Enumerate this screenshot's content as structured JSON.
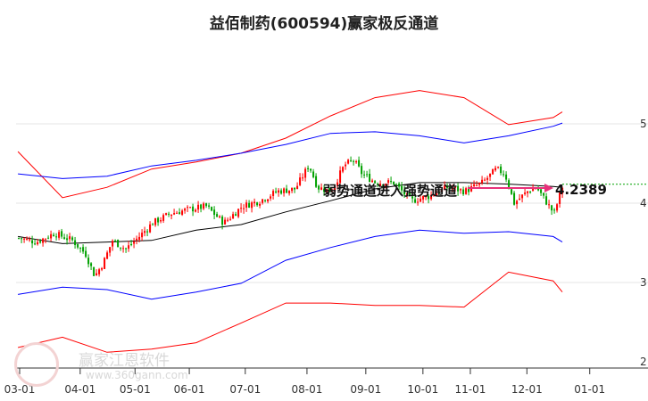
{
  "chart_data": {
    "type": "candlestick-channel",
    "title": "益佰制药(600594)赢家极反通道",
    "x_unit": "months since 03-01",
    "x_ticks": [
      {
        "t": 0,
        "label": "03-01"
      },
      {
        "t": 1.06,
        "label": "04-01"
      },
      {
        "t": 2.02,
        "label": "05-01"
      },
      {
        "t": 2.97,
        "label": "06-01"
      },
      {
        "t": 3.95,
        "label": "07-01"
      },
      {
        "t": 5.03,
        "label": "08-01"
      },
      {
        "t": 6.06,
        "label": "09-01"
      },
      {
        "t": 7.06,
        "label": "10-01"
      },
      {
        "t": 7.89,
        "label": "11-01"
      },
      {
        "t": 8.88,
        "label": "12-01"
      },
      {
        "t": 9.98,
        "label": "01-01"
      }
    ],
    "y_ticks": [
      {
        "v": 5,
        "label": "5"
      },
      {
        "v": 4,
        "label": "4"
      },
      {
        "v": 3,
        "label": "3"
      },
      {
        "v": 2,
        "label": "2"
      }
    ],
    "ylim": [
      1.93,
      5.62
    ],
    "grid": true,
    "price": {
      "t": [
        -0.03,
        0.28,
        0.59,
        0.91,
        1.14,
        1.3,
        1.45,
        1.61,
        1.84,
        2.08,
        2.31,
        2.63,
        2.94,
        3.25,
        3.56,
        3.88,
        4.19,
        4.5,
        4.81,
        5.05,
        5.2,
        5.44,
        5.67,
        5.83,
        5.98,
        6.22,
        6.53,
        6.84,
        7.16,
        7.47,
        7.78,
        8.09,
        8.33,
        8.48,
        8.64,
        8.88,
        9.03,
        9.19,
        9.34,
        9.5
      ],
      "close": [
        3.56,
        3.51,
        3.62,
        3.53,
        3.36,
        3.08,
        3.25,
        3.53,
        3.42,
        3.58,
        3.75,
        3.87,
        3.92,
        3.96,
        3.75,
        3.96,
        4.03,
        4.15,
        4.18,
        4.48,
        4.2,
        4.15,
        4.48,
        4.54,
        4.37,
        4.26,
        4.26,
        4.03,
        4.09,
        4.2,
        4.15,
        4.26,
        4.43,
        4.37,
        4.0,
        4.15,
        4.2,
        4.03,
        3.87,
        4.24
      ]
    },
    "bands": {
      "t": [
        -0.03,
        0.75,
        1.53,
        2.31,
        3.09,
        3.88,
        4.66,
        5.44,
        6.22,
        7.0,
        7.78,
        8.56,
        9.34,
        9.5
      ],
      "series": [
        {
          "name": "upper-outer",
          "color": "#ff0000",
          "values": [
            4.65,
            4.07,
            4.2,
            4.43,
            4.52,
            4.63,
            4.82,
            5.1,
            5.33,
            5.42,
            5.33,
            4.99,
            5.08,
            5.15
          ]
        },
        {
          "name": "upper-inner",
          "color": "#0000ff",
          "values": [
            4.37,
            4.31,
            4.34,
            4.47,
            4.54,
            4.63,
            4.74,
            4.88,
            4.9,
            4.85,
            4.76,
            4.85,
            4.97,
            5.01
          ]
        },
        {
          "name": "middle",
          "color": "#000000",
          "values": [
            3.58,
            3.49,
            3.51,
            3.53,
            3.66,
            3.73,
            3.89,
            4.03,
            4.18,
            4.26,
            4.26,
            4.24,
            4.21,
            4.2
          ]
        },
        {
          "name": "lower-inner",
          "color": "#0000ff",
          "values": [
            2.85,
            2.94,
            2.91,
            2.79,
            2.88,
            2.99,
            3.28,
            3.44,
            3.58,
            3.66,
            3.62,
            3.64,
            3.58,
            3.51
          ]
        },
        {
          "name": "lower-outer",
          "color": "#ff0000",
          "values": [
            2.18,
            2.31,
            2.12,
            2.16,
            2.24,
            2.49,
            2.74,
            2.74,
            2.71,
            2.71,
            2.69,
            3.13,
            3.02,
            2.88
          ]
        }
      ]
    },
    "annotation": {
      "text": "弱势通道进入强势通道",
      "arrow_color": "#e8317a"
    },
    "last_price": {
      "value": 4.2389,
      "label": "4.2389",
      "line_color": "#00a000"
    },
    "colors": {
      "up": "#ff0000",
      "down": "#00a000"
    }
  },
  "watermark": {
    "brand": "赢家江恩软件",
    "url": "www.360gann.com",
    "seal": "江赢恩家"
  }
}
